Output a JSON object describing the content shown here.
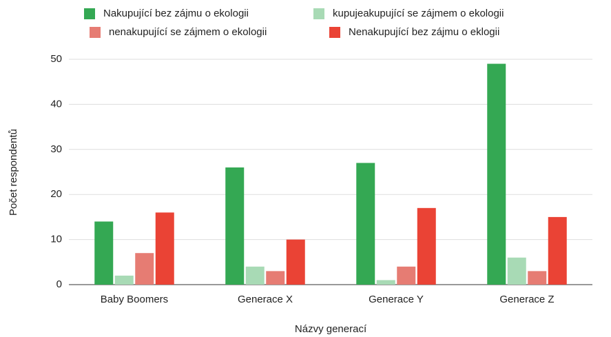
{
  "chart_data": {
    "type": "bar",
    "x_label": "Názvy generací",
    "y_label": "Počet respondentů",
    "categories": [
      "Baby Boomers",
      "Generace X",
      "Generace Y",
      "Generace Z"
    ],
    "series": [
      {
        "name": "Nakupující bez zájmu o ekologii",
        "color": "#34a853",
        "values": [
          14,
          26,
          27,
          49
        ]
      },
      {
        "name": "kupujeakupující se zájmem o ekologii",
        "color": "#a8dab5",
        "values": [
          2,
          4,
          1,
          6
        ]
      },
      {
        "name": "nenakupující se zájmem o ekologii",
        "color": "#e67c73",
        "values": [
          7,
          3,
          4,
          3
        ]
      },
      {
        "name": "Nenakupující bez zájmu o eklogii",
        "color": "#ea4335",
        "values": [
          16,
          10,
          17,
          15
        ]
      }
    ],
    "ylim": [
      0,
      50
    ],
    "yticks": [
      0,
      10,
      20,
      30,
      40,
      50
    ],
    "grid": true,
    "legend": "top"
  }
}
